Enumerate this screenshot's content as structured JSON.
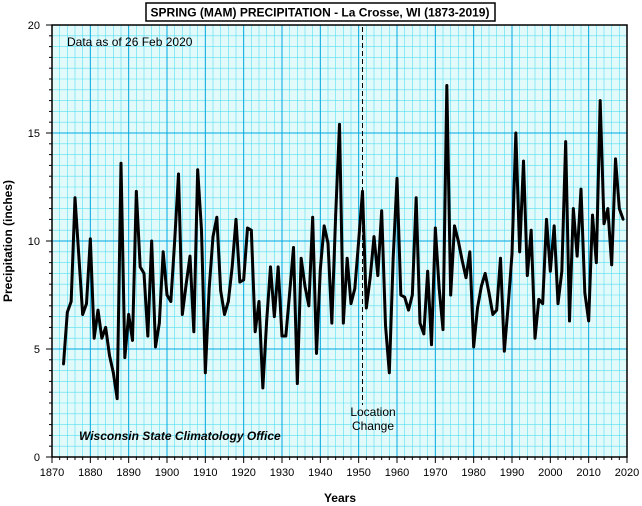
{
  "chart_data": {
    "type": "line",
    "title": "SPRING (MAM)  PRECIPITATION - La Crosse, WI (1873-2019)",
    "xlabel": "Years",
    "ylabel": "Precipitation (inches)",
    "xlim": [
      1870,
      2020
    ],
    "ylim": [
      0,
      20
    ],
    "x_ticks": [
      1870,
      1880,
      1890,
      1900,
      1910,
      1920,
      1930,
      1940,
      1950,
      1960,
      1970,
      1980,
      1990,
      2000,
      2010,
      2020
    ],
    "y_ticks": [
      0,
      5,
      10,
      15,
      20
    ],
    "grid": true,
    "series": [
      {
        "x": [
          1873,
          1874,
          1875,
          1876,
          1877,
          1878,
          1879,
          1880,
          1881,
          1882,
          1883,
          1884,
          1885,
          1886,
          1887,
          1888,
          1889,
          1890,
          1891,
          1892,
          1893,
          1894,
          1895,
          1896,
          1897,
          1898,
          1899,
          1900,
          1901,
          1902,
          1903,
          1904,
          1905,
          1906,
          1907,
          1908,
          1909,
          1910,
          1911,
          1912,
          1913,
          1914,
          1915,
          1916,
          1917,
          1918,
          1919,
          1920,
          1921,
          1922,
          1923,
          1924,
          1925,
          1926,
          1927,
          1928,
          1929,
          1930,
          1931,
          1932,
          1933,
          1934,
          1935,
          1936,
          1937,
          1938,
          1939,
          1940,
          1941,
          1942,
          1943,
          1944,
          1945,
          1946,
          1947,
          1948,
          1949,
          1950,
          1951,
          1952,
          1953,
          1954,
          1955,
          1956,
          1957,
          1958,
          1959,
          1960,
          1961,
          1962,
          1963,
          1964,
          1965,
          1966,
          1967,
          1968,
          1969,
          1970,
          1971,
          1972,
          1973,
          1974,
          1975,
          1976,
          1977,
          1978,
          1979,
          1980,
          1981,
          1982,
          1983,
          1984,
          1985,
          1986,
          1987,
          1988,
          1989,
          1990,
          1991,
          1992,
          1993,
          1994,
          1995,
          1996,
          1997,
          1998,
          1999,
          2000,
          2001,
          2002,
          2003,
          2004,
          2005,
          2006,
          2007,
          2008,
          2009,
          2010,
          2011,
          2012,
          2013,
          2014,
          2015,
          2016,
          2017,
          2018,
          2019
        ],
        "values": [
          4.3,
          6.7,
          7.2,
          12.0,
          9.3,
          6.6,
          7.1,
          10.1,
          5.5,
          6.8,
          5.5,
          6.0,
          4.7,
          3.9,
          2.7,
          13.6,
          4.6,
          6.6,
          5.4,
          12.3,
          8.8,
          8.5,
          5.6,
          10.0,
          5.1,
          6.2,
          9.5,
          7.5,
          7.2,
          10.0,
          13.1,
          6.6,
          8.0,
          9.3,
          5.8,
          13.3,
          10.5,
          3.9,
          7.8,
          10.2,
          11.1,
          7.7,
          6.6,
          7.2,
          8.8,
          11.0,
          8.1,
          8.2,
          10.6,
          10.5,
          5.8,
          7.2,
          3.2,
          6.3,
          8.8,
          6.5,
          8.8,
          5.6,
          5.6,
          7.6,
          9.7,
          3.4,
          9.2,
          7.9,
          7.0,
          11.1,
          4.8,
          8.7,
          10.7,
          9.9,
          6.2,
          11.2,
          15.4,
          6.2,
          9.2,
          7.1,
          7.8,
          10.0,
          12.3,
          6.9,
          8.3,
          10.2,
          8.4,
          11.4,
          6.1,
          3.9,
          9.2,
          12.9,
          7.5,
          7.4,
          6.8,
          7.5,
          12.0,
          6.2,
          5.7,
          8.6,
          5.2,
          10.6,
          7.8,
          5.9,
          17.2,
          7.5,
          10.7,
          10.0,
          9.1,
          8.3,
          9.5,
          5.1,
          6.9,
          7.9,
          8.5,
          7.6,
          6.6,
          6.8,
          9.2,
          4.9,
          7.0,
          9.4,
          15.0,
          9.5,
          13.7,
          8.4,
          10.5,
          5.5,
          7.3,
          7.1,
          11.0,
          8.6,
          10.7,
          7.1,
          8.6,
          14.6,
          6.3,
          11.5,
          9.3,
          12.4,
          7.6,
          6.3,
          11.2,
          9.0,
          16.5,
          10.8,
          11.5,
          8.9,
          13.8,
          11.5,
          11.0
        ]
      }
    ],
    "annotations": {
      "data_note": "Data as of 26 Feb 2020",
      "location_change_year": 1951,
      "location_change_line1": "Location",
      "location_change_line2": "Change",
      "credit": "Wisconsin State Climatology Office"
    }
  }
}
